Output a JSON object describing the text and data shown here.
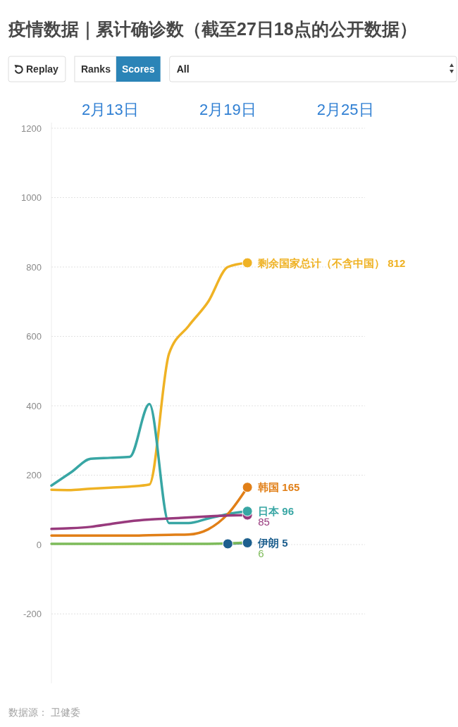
{
  "chart_data": {
    "type": "line",
    "title": "疫情数据｜累计确诊数（截至27日18点的公开数据）",
    "annotations": [
      "Replay",
      "Ranks",
      "Scores",
      "All",
      "数据源： 卫健委"
    ],
    "xlim": [
      "--02-10",
      "--02-26"
    ],
    "xticks": [
      {
        "value": "--02-13",
        "label": "2月13日"
      },
      {
        "value": "--02-19",
        "label": "2月19日"
      },
      {
        "value": "--02-25",
        "label": "2月25日"
      }
    ],
    "ylim": [
      -400,
      1200
    ],
    "yticks": [
      -200,
      0,
      200,
      400,
      600,
      800,
      1000,
      1200
    ],
    "grid": "y",
    "x": [
      "--02-10",
      "--02-11",
      "--02-12",
      "--02-13",
      "--02-14",
      "--02-15",
      "--02-16",
      "--02-17",
      "--02-18",
      "--02-19",
      "--02-20"
    ],
    "series": [
      {
        "name": "剩余国家总计（不含中国）",
        "color": "#efb224",
        "values": [
          158,
          157,
          161,
          164,
          167,
          173,
          550,
          630,
          700,
          800,
          812
        ],
        "value_labels": [
          null,
          null,
          null,
          null,
          null,
          null,
          null,
          null,
          null,
          null,
          "812"
        ]
      },
      {
        "name": "日本",
        "color": "#38a6a4",
        "values": [
          170,
          208,
          247,
          250,
          253,
          405,
          62,
          62,
          75,
          88,
          96
        ],
        "value_labels": [
          null,
          null,
          null,
          null,
          null,
          null,
          null,
          null,
          null,
          null,
          "96"
        ]
      },
      {
        "name": "韩国",
        "color": "#e17f17",
        "values": [
          26,
          26,
          26,
          26,
          26,
          27,
          28,
          29,
          44,
          88,
          165
        ],
        "value_labels": [
          null,
          null,
          null,
          null,
          null,
          null,
          null,
          null,
          null,
          null,
          "165"
        ]
      },
      {
        "color": "#983a7d",
        "values": [
          45,
          47,
          51,
          59,
          67,
          72,
          75,
          78,
          81,
          84,
          85
        ],
        "value_labels": [
          null,
          null,
          null,
          null,
          null,
          null,
          null,
          null,
          null,
          null,
          "85"
        ]
      },
      {
        "name": "伊朗",
        "color": "#1d5f8e",
        "marker": "circle",
        "values": [
          null,
          null,
          null,
          null,
          null,
          null,
          null,
          null,
          null,
          2,
          5
        ],
        "value_labels": [
          null,
          null,
          null,
          null,
          null,
          null,
          null,
          null,
          null,
          null,
          "5"
        ]
      },
      {
        "color": "#7dbb5a",
        "values": [
          2,
          2,
          2,
          2,
          2,
          2,
          2,
          2,
          2,
          3,
          6
        ],
        "value_labels": [
          null,
          null,
          null,
          null,
          null,
          null,
          null,
          null,
          null,
          null,
          "6"
        ]
      }
    ]
  }
}
